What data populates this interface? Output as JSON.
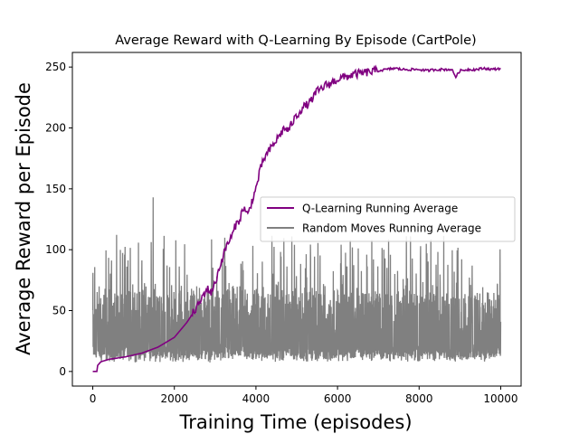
{
  "chart_data": {
    "type": "line",
    "title": "Average Reward with Q-Learning By Episode (CartPole)",
    "xlabel": "Training Time (episodes)",
    "ylabel": "Average Reward per Episode",
    "xlim": [
      -500,
      10500
    ],
    "ylim": [
      -12,
      262
    ],
    "x_ticks": [
      0,
      2000,
      4000,
      6000,
      8000,
      10000
    ],
    "y_ticks": [
      0,
      50,
      100,
      150,
      200,
      250
    ],
    "grid": false,
    "legend_position": "center-right",
    "series": [
      {
        "name": "Q-Learning Running Average",
        "color": "#800080",
        "x": [
          0,
          50,
          100,
          120,
          200,
          400,
          800,
          1200,
          1600,
          2000,
          2300,
          2500,
          2600,
          2700,
          2800,
          2900,
          3000,
          3100,
          3200,
          3300,
          3400,
          3500,
          3600,
          3700,
          3800,
          3900,
          4000,
          4100,
          4200,
          4300,
          4400,
          4500,
          4600,
          4700,
          4800,
          4900,
          5000,
          5100,
          5200,
          5300,
          5400,
          5500,
          5600,
          5700,
          5800,
          5900,
          6000,
          6200,
          6400,
          6600,
          6800,
          7000,
          7200,
          7400,
          7600,
          7800,
          8000,
          8200,
          8400,
          8600,
          8800,
          8900,
          9000,
          9200,
          9400,
          9600,
          9800,
          10000
        ],
        "y": [
          0,
          0,
          0,
          5,
          8,
          10,
          12,
          15,
          20,
          28,
          40,
          50,
          55,
          62,
          68,
          65,
          72,
          85,
          95,
          105,
          110,
          120,
          125,
          135,
          128,
          140,
          150,
          165,
          175,
          180,
          185,
          190,
          195,
          200,
          198,
          205,
          210,
          215,
          218,
          220,
          225,
          230,
          232,
          235,
          236,
          238,
          240,
          242,
          244,
          245,
          246,
          247,
          248,
          249,
          248,
          248,
          248,
          247,
          248,
          248,
          248,
          242,
          247,
          248,
          248,
          249,
          248,
          249
        ]
      },
      {
        "name": "Random Moves Running Average",
        "color": "#808080",
        "x": [
          0,
          1000,
          2000,
          3000,
          4000,
          5000,
          6000,
          7000,
          8000,
          9000,
          10000
        ],
        "y": [
          22,
          23,
          22,
          22,
          23,
          22,
          23,
          22,
          22,
          23,
          22
        ],
        "y_min": 7,
        "y_max": 143,
        "peak_x": 1480,
        "peak_y": 143
      }
    ]
  }
}
